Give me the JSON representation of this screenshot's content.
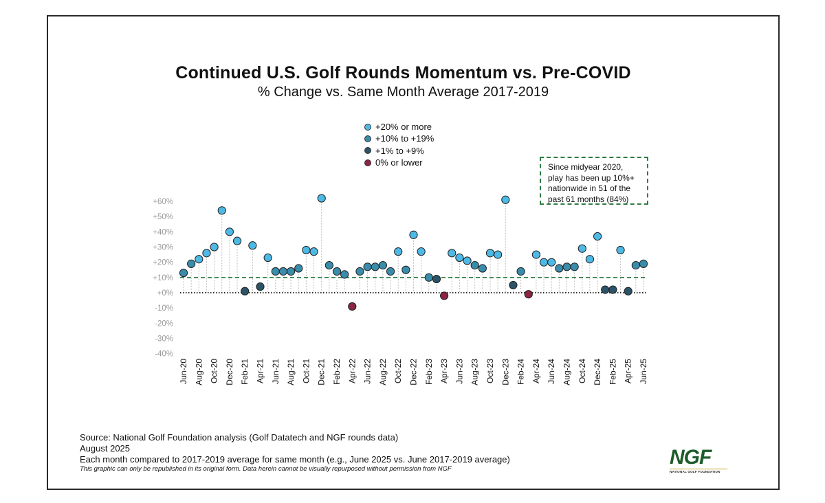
{
  "header": {
    "title": "Continued U.S. Golf Rounds Momentum vs. Pre-COVID",
    "subtitle": "% Change vs. Same Month Average 2017-2019"
  },
  "legend": [
    {
      "label": "+20% or more",
      "color": "#4fb9e6"
    },
    {
      "label": "+10% to +19%",
      "color": "#3a8cab"
    },
    {
      "label": "+1% to +9%",
      "color": "#2b5468"
    },
    {
      "label": "0% or lower",
      "color": "#8a2542"
    }
  ],
  "callout": {
    "lines": [
      "Since midyear 2020,",
      "play has been up 10%+",
      "nationwide in 51 of the",
      "past 61 months (84%)"
    ]
  },
  "footer": {
    "source": "Source: National Golf Foundation analysis (Golf Datatech and NGF rounds data)",
    "date": "August 2025",
    "note": "Each month compared to 2017-2019 average for same month (e.g., June 2025 vs. June 2017-2019 average)",
    "disclaimer": "This graphic can only be republished in its original form. Data herein cannot be visually repurposed without permission from NGF"
  },
  "logo": {
    "mark": "NGF",
    "subtext": "NATIONAL GOLF FOUNDATION"
  },
  "colors": {
    "high": "#4fb9e6",
    "mid": "#3a8cab",
    "low": "#2b5468",
    "neg": "#8a2542",
    "reference_line": "#2e7d43",
    "zero_line": "#111111"
  },
  "chart_data": {
    "type": "scatter",
    "title": "Continued U.S. Golf Rounds Momentum vs. Pre-COVID",
    "subtitle": "% Change vs. Same Month Average 2017-2019",
    "xlabel": "",
    "ylabel": "",
    "ylim": [
      -40,
      60
    ],
    "yticks": [
      60,
      50,
      40,
      30,
      20,
      10,
      0,
      -10,
      -20,
      -30,
      -40
    ],
    "ytick_labels": [
      "+60%",
      "+50%",
      "+40%",
      "+30%",
      "+20%",
      "+10%",
      "+0%",
      "-10%",
      "-20%",
      "-30%",
      "-40%"
    ],
    "reference_line": 10,
    "x": [
      "Jun-20",
      "Jul-20",
      "Aug-20",
      "Sep-20",
      "Oct-20",
      "Nov-20",
      "Dec-20",
      "Jan-21",
      "Feb-21",
      "Mar-21",
      "Apr-21",
      "May-21",
      "Jun-21",
      "Jul-21",
      "Aug-21",
      "Sep-21",
      "Oct-21",
      "Nov-21",
      "Dec-21",
      "Jan-22",
      "Feb-22",
      "Mar-22",
      "Apr-22",
      "May-22",
      "Jun-22",
      "Jul-22",
      "Aug-22",
      "Sep-22",
      "Oct-22",
      "Nov-22",
      "Dec-22",
      "Jan-23",
      "Feb-23",
      "Mar-23",
      "Apr-23",
      "May-23",
      "Jun-23",
      "Jul-23",
      "Aug-23",
      "Sep-23",
      "Oct-23",
      "Nov-23",
      "Dec-23",
      "Jan-24",
      "Feb-24",
      "Mar-24",
      "Apr-24",
      "May-24",
      "Jun-24",
      "Jul-24",
      "Aug-24",
      "Sep-24",
      "Oct-24",
      "Nov-24",
      "Dec-24",
      "Jan-25",
      "Feb-25",
      "Mar-25",
      "Apr-25",
      "May-25",
      "Jun-25"
    ],
    "tick_labels": [
      "Jun-20",
      "Aug-20",
      "Oct-20",
      "Dec-20",
      "Feb-21",
      "Apr-21",
      "Jun-21",
      "Aug-21",
      "Oct-21",
      "Dec-21",
      "Feb-22",
      "Apr-22",
      "Jun-22",
      "Aug-22",
      "Oct-22",
      "Dec-22",
      "Feb-23",
      "Apr-23",
      "Jun-23",
      "Aug-23",
      "Oct-23",
      "Dec-23",
      "Feb-24",
      "Apr-24",
      "Jun-24",
      "Aug-24",
      "Oct-24",
      "Dec-24",
      "Feb-25",
      "Apr-25",
      "Jun-25"
    ],
    "values": [
      13,
      19,
      22,
      26,
      30,
      54,
      40,
      34,
      1,
      31,
      4,
      23,
      14,
      14,
      14,
      16,
      28,
      27,
      62,
      18,
      14,
      12,
      -9,
      14,
      17,
      17,
      18,
      14,
      27,
      15,
      38,
      27,
      10,
      9,
      -2,
      26,
      23,
      21,
      18,
      16,
      26,
      25,
      61,
      5,
      14,
      -1,
      25,
      20,
      20,
      16,
      17,
      17,
      29,
      22,
      37,
      2,
      2,
      28,
      1,
      18,
      19
    ]
  }
}
